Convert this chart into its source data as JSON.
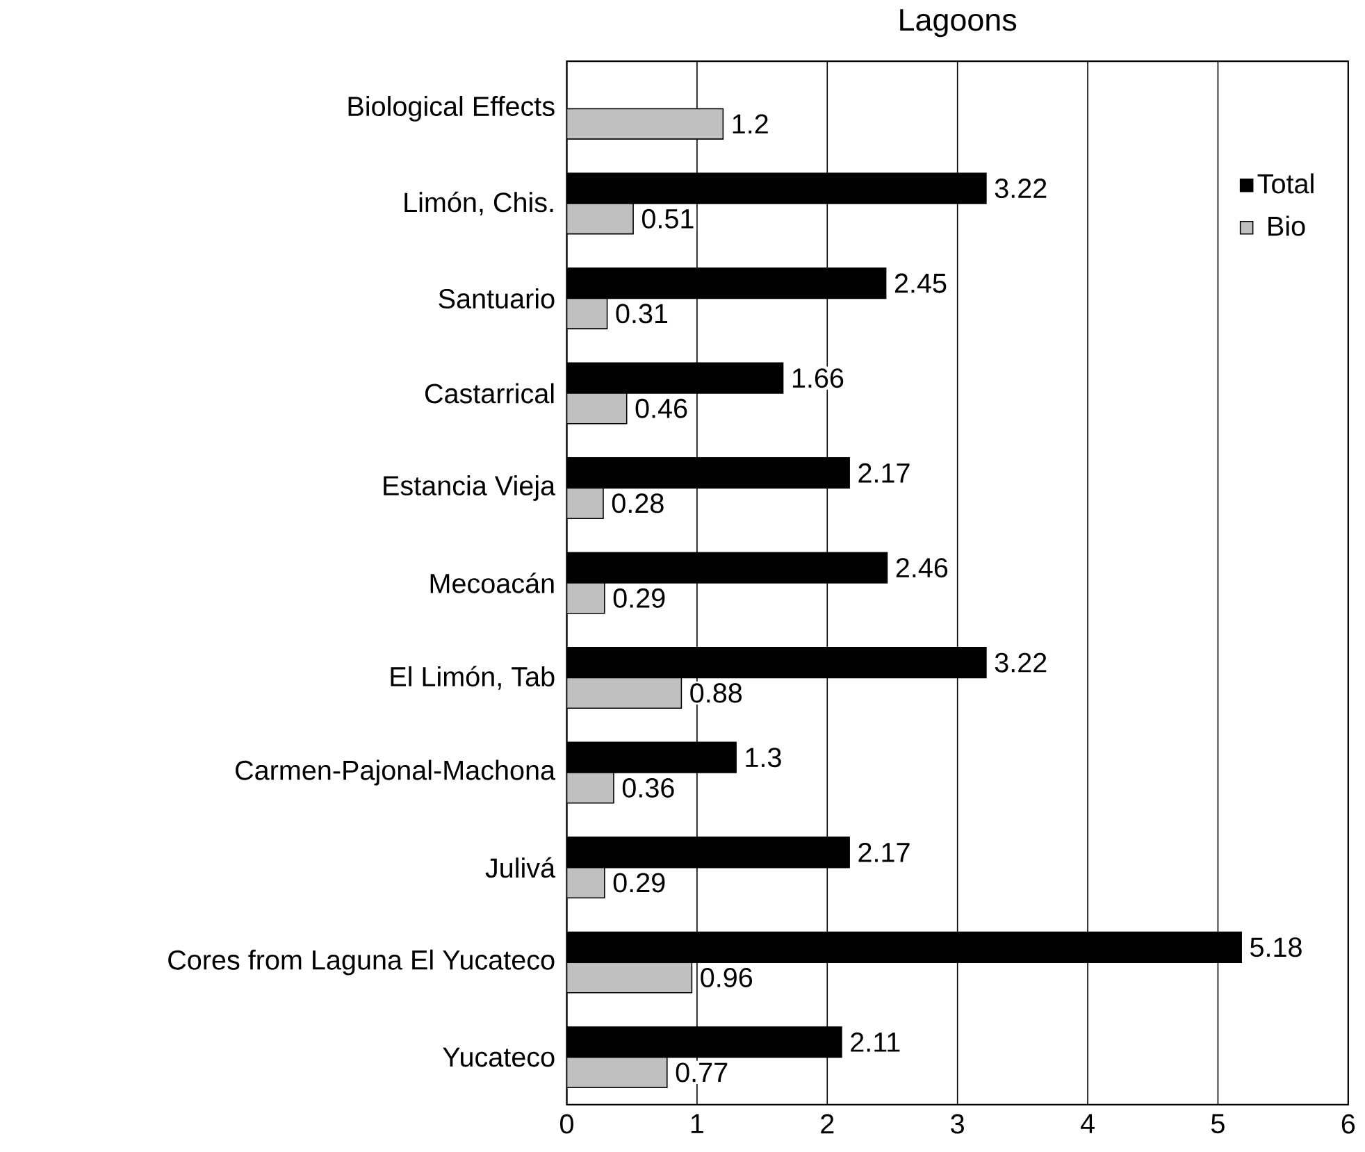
{
  "chart_data": {
    "type": "bar",
    "orientation": "horizontal",
    "title": "Lagoons",
    "categories": [
      "Biological Effects",
      "Limón, Chis.",
      "Santuario",
      "Castarrical",
      "Estancia Vieja",
      "Mecoacán",
      "El Limón, Tab",
      "Carmen-Pajonal-Machona",
      "Julivá",
      "Cores from Laguna El Yucateco",
      "Yucateco"
    ],
    "series": [
      {
        "name": "Total",
        "color": "#000000",
        "values": [
          null,
          3.22,
          2.45,
          1.66,
          2.17,
          2.46,
          3.22,
          1.3,
          2.17,
          5.18,
          2.11
        ]
      },
      {
        "name": "Bio",
        "color": "#c0c0c0",
        "values": [
          1.2,
          0.51,
          0.31,
          0.46,
          0.28,
          0.29,
          0.88,
          0.36,
          0.29,
          0.96,
          0.77
        ]
      }
    ],
    "xlim": [
      0,
      6
    ],
    "xticks": [
      0,
      1,
      2,
      3,
      4,
      5,
      6
    ],
    "grid": "x",
    "legend": "top right",
    "data_labels": true
  }
}
